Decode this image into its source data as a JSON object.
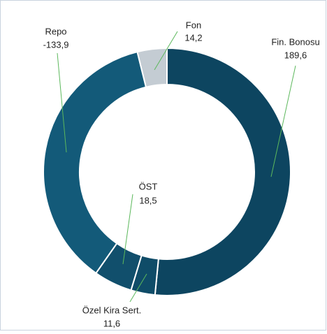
{
  "chart_data": {
    "type": "donut",
    "categories": [
      "Fin. Bonosu",
      "Özel Kira Sert.",
      "ÖST",
      "Repo",
      "Fon"
    ],
    "values": [
      189.6,
      11.6,
      18.5,
      -133.9,
      14.2
    ],
    "value_labels": [
      "189,6",
      "11,6",
      "18,5",
      "-133,9",
      "14,2"
    ],
    "colors": [
      "#0d4560",
      "#0f4c68",
      "#114f6c",
      "#135a79",
      "#c4ccd3"
    ]
  }
}
